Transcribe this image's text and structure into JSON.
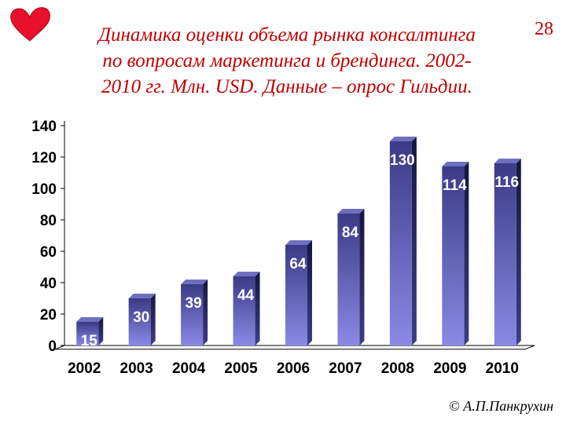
{
  "page_number": "28",
  "title_lines": [
    "Динамика оценки объема рынка консалтинга",
    "по вопросам маркетинга и брендинга. 2002-",
    "2010 гг. Млн. USD. Данные – опрос Гильдии."
  ],
  "author": "© А.П.Панкрухин",
  "colors": {
    "accent": "#c00000",
    "bar_top": "#3a3a86",
    "bar_bottom": "#8a8ae6"
  },
  "chart_data": {
    "type": "bar",
    "title": "Динамика оценки объема рынка консалтинга по вопросам маркетинга и брендинга. 2002-2010 гг. Млн. USD. Данные – опрос Гильдии.",
    "categories": [
      "2002",
      "2003",
      "2004",
      "2005",
      "2006",
      "2007",
      "2008",
      "2009",
      "2010"
    ],
    "values": [
      15,
      30,
      39,
      44,
      64,
      84,
      130,
      114,
      116
    ],
    "ylim": [
      0,
      140
    ],
    "yticks": [
      0,
      20,
      40,
      60,
      80,
      100,
      120,
      140
    ],
    "xlabel": "",
    "ylabel": "",
    "grid": false,
    "style": "3d"
  }
}
